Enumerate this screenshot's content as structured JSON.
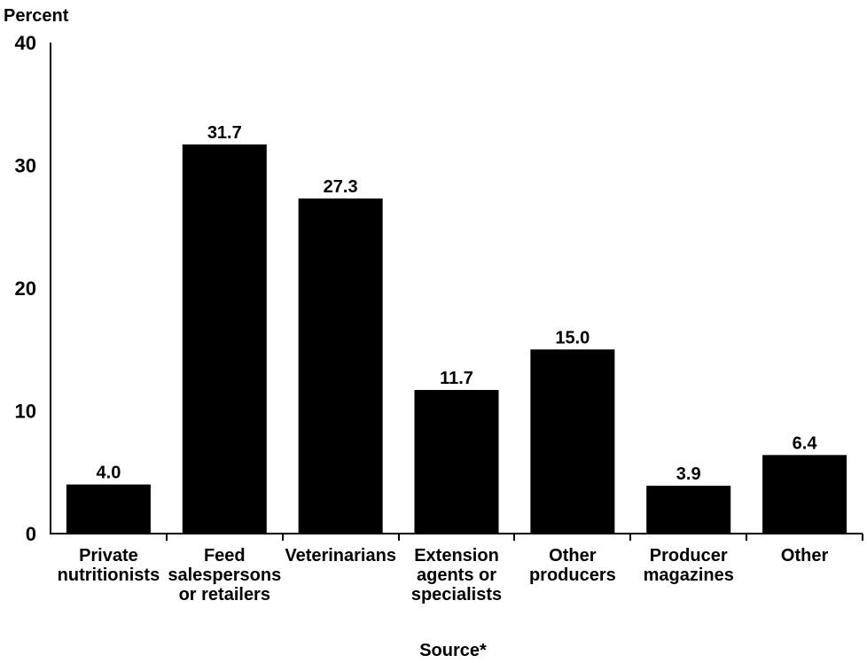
{
  "chart_data": {
    "type": "bar",
    "ylabel": "Percent",
    "xlabel": "Source*",
    "ylim": [
      0,
      40
    ],
    "yticks": [
      0,
      10,
      20,
      30,
      40
    ],
    "grid": false,
    "categories": [
      [
        "Private",
        "nutritionists"
      ],
      [
        "Feed",
        "salespersons",
        "or retailers"
      ],
      [
        "Veterinarians"
      ],
      [
        "Extension",
        "agents or",
        "specialists"
      ],
      [
        "Other",
        "producers"
      ],
      [
        "Producer",
        "magazines"
      ],
      [
        "Other"
      ]
    ],
    "values": [
      4.0,
      31.7,
      27.3,
      11.7,
      15.0,
      3.9,
      6.4
    ],
    "value_labels": [
      "4.0",
      "31.7",
      "27.3",
      "11.7",
      "15.0",
      "3.9",
      "6.4"
    ],
    "bar_color": "#000000"
  }
}
